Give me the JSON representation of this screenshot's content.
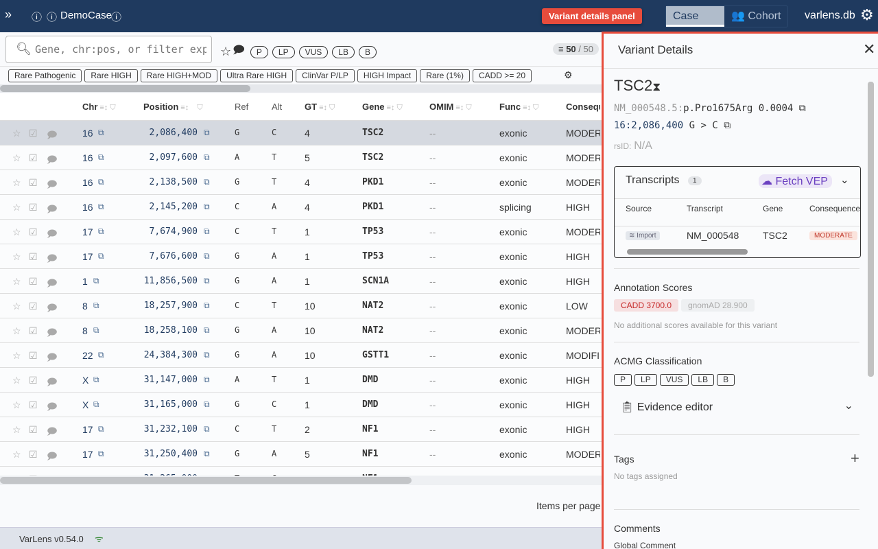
{
  "header": {
    "case_name": "DemoCase",
    "tabs": [
      "Case",
      "Cohort"
    ],
    "db": "varlens.db"
  },
  "search": {
    "placeholder": "Gene, chr:pos, or filter expression",
    "acmg_pills": [
      "P",
      "LP",
      "VUS",
      "LB",
      "B"
    ],
    "count": "50",
    "count_total": "/ 50"
  },
  "presets": [
    "Rare Pathogenic",
    "Rare HIGH",
    "Rare HIGH+MOD",
    "Ultra Rare HIGH",
    "ClinVar P/LP",
    "HIGH Impact",
    "Rare (1%)",
    "CADD >= 20"
  ],
  "table": {
    "columns": [
      "Chr",
      "Position",
      "Ref",
      "Alt",
      "GT",
      "Gene",
      "OMIM",
      "Func",
      "Consequence"
    ],
    "rows": [
      [
        "16",
        "2,086,400",
        "G",
        "C",
        "4",
        "TSC2",
        "--",
        "exonic",
        "MODERATE"
      ],
      [
        "16",
        "2,097,600",
        "A",
        "T",
        "5",
        "TSC2",
        "--",
        "exonic",
        "MODERATE"
      ],
      [
        "16",
        "2,138,500",
        "G",
        "T",
        "4",
        "PKD1",
        "--",
        "exonic",
        "MODERATE"
      ],
      [
        "16",
        "2,145,200",
        "C",
        "A",
        "4",
        "PKD1",
        "--",
        "splicing",
        "HIGH"
      ],
      [
        "17",
        "7,674,900",
        "C",
        "T",
        "1",
        "TP53",
        "--",
        "exonic",
        "MODERATE"
      ],
      [
        "17",
        "7,676,600",
        "G",
        "A",
        "1",
        "TP53",
        "--",
        "exonic",
        "HIGH"
      ],
      [
        "1",
        "11,856,500",
        "G",
        "A",
        "1",
        "SCN1A",
        "--",
        "exonic",
        "HIGH"
      ],
      [
        "8",
        "18,257,900",
        "C",
        "T",
        "10",
        "NAT2",
        "--",
        "exonic",
        "LOW"
      ],
      [
        "8",
        "18,258,100",
        "G",
        "A",
        "10",
        "NAT2",
        "--",
        "exonic",
        "MODERATE"
      ],
      [
        "22",
        "24,384,300",
        "G",
        "A",
        "10",
        "GSTT1",
        "--",
        "exonic",
        "MODIFIER"
      ],
      [
        "X",
        "31,147,000",
        "A",
        "T",
        "1",
        "DMD",
        "--",
        "exonic",
        "HIGH"
      ],
      [
        "X",
        "31,165,000",
        "G",
        "C",
        "1",
        "DMD",
        "--",
        "exonic",
        "HIGH"
      ],
      [
        "17",
        "31,232,100",
        "C",
        "T",
        "2",
        "NF1",
        "--",
        "exonic",
        "HIGH"
      ],
      [
        "17",
        "31,250,400",
        "G",
        "A",
        "5",
        "NF1",
        "--",
        "exonic",
        "MODERATE"
      ],
      [
        "17",
        "31,265,000",
        "T",
        "C",
        "7",
        "NF1",
        "--",
        "intronic",
        "LOW"
      ]
    ]
  },
  "pagination": {
    "items_per_page": "Items per page"
  },
  "footer": {
    "version": "VarLens v0.54.0"
  },
  "panel_label": "Variant details panel",
  "panel": {
    "title": "Variant Details",
    "gene": "TSC2",
    "transcript_prefix": "NM_000548.5:",
    "protein": "p.Pro1675Arg",
    "af": "0.0004",
    "locus": "16:2,086,400",
    "change": "G > C",
    "rsid_label": "rsID:",
    "rsid": "N/A",
    "transcripts": {
      "title": "Transcripts",
      "count": "1",
      "fetch": "Fetch VEP",
      "columns": [
        "Source",
        "Transcript",
        "Gene",
        "Consequence"
      ],
      "row": {
        "source": "Import",
        "transcript": "NM_000548",
        "gene": "TSC2",
        "consequence": "MODERATE"
      }
    },
    "scores": {
      "title": "Annotation Scores",
      "cadd": "CADD 3700.0",
      "gnomad": "gnomAD 28.900",
      "note": "No additional scores available for this variant"
    },
    "acmg": {
      "title": "ACMG Classification",
      "options": [
        "P",
        "LP",
        "VUS",
        "LB",
        "B"
      ],
      "evidence": "Evidence editor"
    },
    "tags": {
      "title": "Tags",
      "empty": "No tags assigned"
    },
    "comments": {
      "title": "Comments",
      "global": "Global Comment"
    }
  }
}
